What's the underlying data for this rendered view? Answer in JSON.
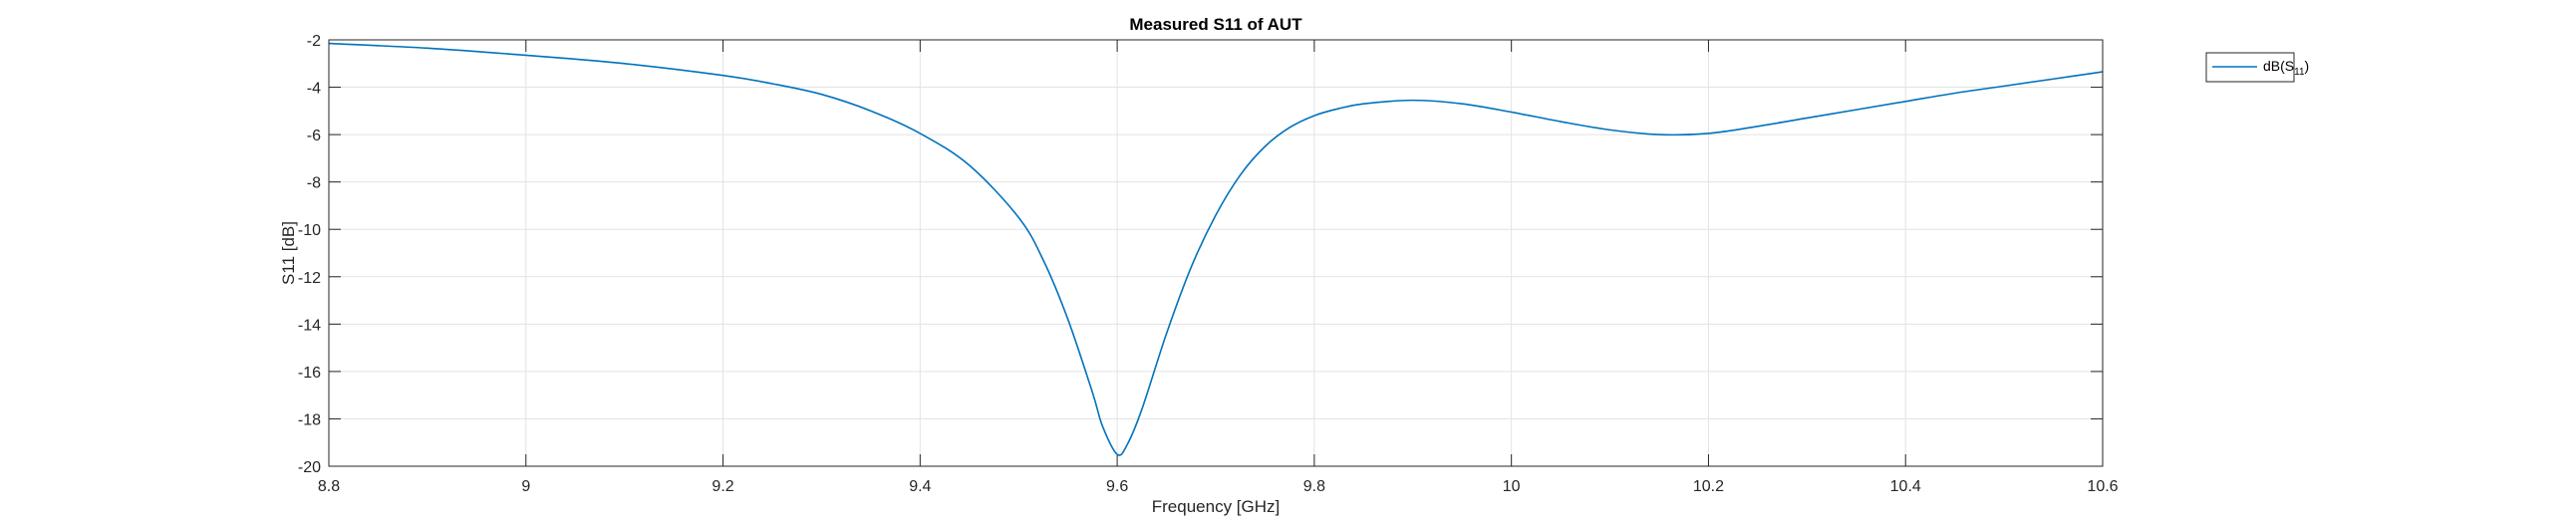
{
  "chart_data": {
    "type": "line",
    "title": "Measured S11 of AUT",
    "xlabel": "Frequency [GHz]",
    "ylabel": "S11 [dB]",
    "xlim": [
      8.8,
      10.6
    ],
    "ylim": [
      -20,
      -2
    ],
    "xticks": [
      8.8,
      9,
      9.2,
      9.4,
      9.6,
      9.8,
      10,
      10.2,
      10.4,
      10.6
    ],
    "xtick_labels": [
      "8.8",
      "9",
      "9.2",
      "9.4",
      "9.6",
      "9.8",
      "10",
      "10.2",
      "10.4",
      "10.6"
    ],
    "yticks": [
      -20,
      -18,
      -16,
      -14,
      -12,
      -10,
      -8,
      -6,
      -4,
      -2
    ],
    "ytick_labels": [
      "-20",
      "-18",
      "-16",
      "-14",
      "-12",
      "-10",
      "-8",
      "-6",
      "-4",
      "-2"
    ],
    "grid": true,
    "legend": {
      "placement": "top-right",
      "entry": {
        "prefix": "dB(S",
        "subscript": "11",
        "suffix": ")"
      }
    },
    "series": [
      {
        "name": "dB(S11)",
        "color": "#0072BD",
        "x": [
          8.8,
          8.9,
          9.0,
          9.1,
          9.2,
          9.25,
          9.3,
          9.35,
          9.4,
          9.45,
          9.5,
          9.525,
          9.55,
          9.575,
          9.585,
          9.6,
          9.61,
          9.625,
          9.65,
          9.675,
          9.7,
          9.725,
          9.75,
          9.775,
          9.8,
          9.825,
          9.85,
          9.9,
          9.95,
          10.0,
          10.05,
          10.1,
          10.15,
          10.2,
          10.25,
          10.3,
          10.35,
          10.4,
          10.45,
          10.5,
          10.55,
          10.6
        ],
        "y": [
          -2.15,
          -2.35,
          -2.65,
          -3.0,
          -3.5,
          -3.85,
          -4.3,
          -5.0,
          -5.95,
          -7.3,
          -9.5,
          -11.3,
          -13.8,
          -16.9,
          -18.3,
          -19.5,
          -19.1,
          -17.6,
          -14.4,
          -11.6,
          -9.4,
          -7.7,
          -6.5,
          -5.7,
          -5.2,
          -4.9,
          -4.7,
          -4.55,
          -4.7,
          -5.05,
          -5.45,
          -5.8,
          -6.0,
          -5.95,
          -5.65,
          -5.3,
          -4.95,
          -4.6,
          -4.25,
          -3.95,
          -3.65,
          -3.35
        ]
      }
    ]
  }
}
